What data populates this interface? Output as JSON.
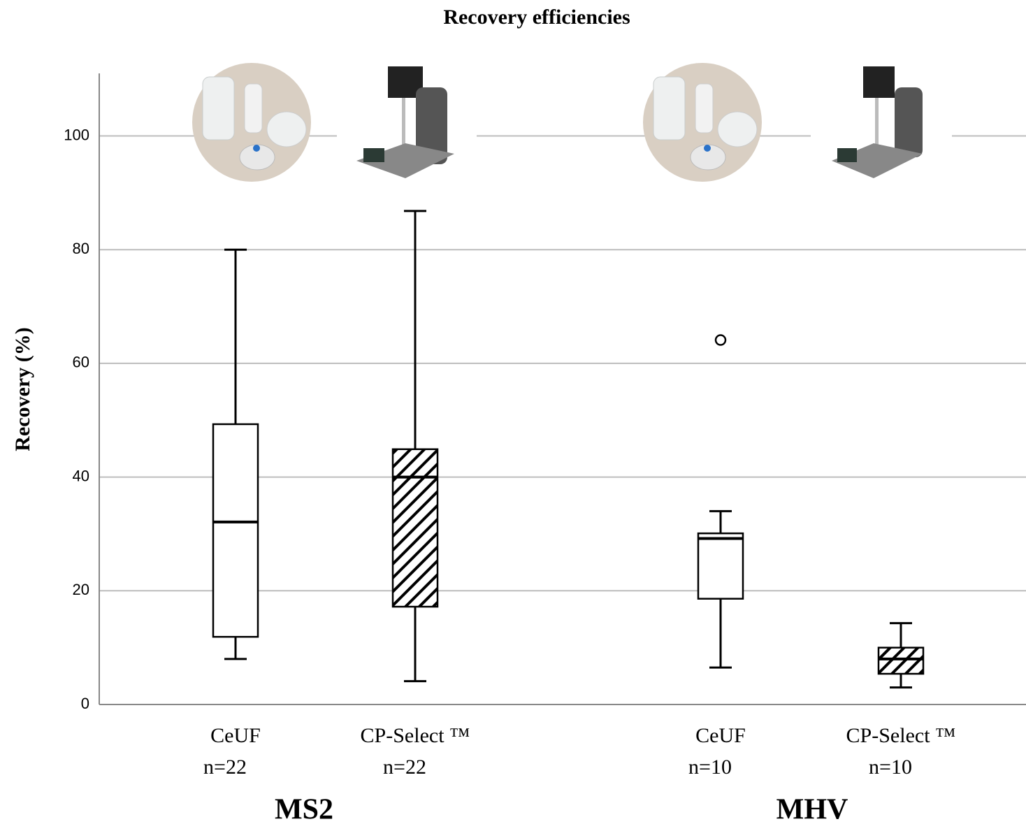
{
  "chart_data": {
    "type": "box",
    "title": "Recovery efficiencies",
    "ylabel": "Recovery (%)",
    "ylim": [
      0,
      111
    ],
    "yticks": [
      0,
      20,
      40,
      60,
      80,
      100
    ],
    "grid": true,
    "groups": [
      {
        "name": "MS2",
        "boxes": [
          {
            "label": "CeUF",
            "n_label": "n=22",
            "hatch": false,
            "min": 8.0,
            "q1": 11.9,
            "median": 32.1,
            "q3": 49.3,
            "max": 80.0,
            "outliers": []
          },
          {
            "label": "CP-Select ™",
            "n_label": "n=22",
            "hatch": true,
            "min": 4.1,
            "q1": 17.2,
            "median": 40.0,
            "q3": 44.9,
            "max": 86.8,
            "outliers": []
          }
        ]
      },
      {
        "name": "MHV",
        "boxes": [
          {
            "label": "CeUF",
            "n_label": "n=10",
            "hatch": false,
            "min": 6.5,
            "q1": 18.6,
            "median": 29.2,
            "q3": 30.1,
            "max": 34.0,
            "outliers": [
              64.1
            ]
          },
          {
            "label": "CP-Select ™",
            "n_label": "n=10",
            "hatch": true,
            "min": 3.0,
            "q1": 5.4,
            "median": 8.0,
            "q3": 10.0,
            "max": 14.3,
            "outliers": []
          }
        ]
      }
    ]
  }
}
